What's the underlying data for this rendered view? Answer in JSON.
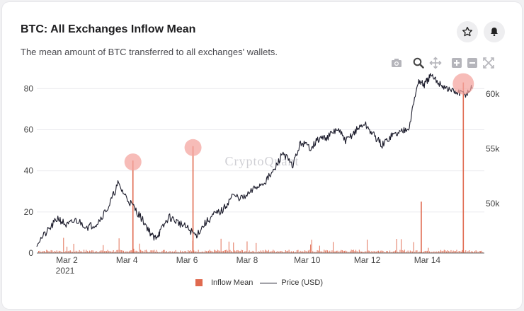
{
  "header": {
    "title": "BTC: All Exchanges Inflow Mean",
    "subtitle": "The mean amount of BTC transferred to all exchanges' wallets."
  },
  "actions": {
    "star_icon": "star-icon",
    "bell_icon": "bell-icon"
  },
  "modebar": [
    "camera-icon",
    "zoom-icon",
    "pan-icon",
    "zoom-in-icon",
    "zoom-out-icon",
    "autoscale-icon"
  ],
  "watermark": "CryptoQuant",
  "legend": {
    "inflow": "Inflow Mean",
    "price": "Price (USD)"
  },
  "colors": {
    "inflow": "#e06a4f",
    "price": "#1a1a2a",
    "highlight": "#f4a6a0"
  },
  "chart_data": {
    "type": "bar+line",
    "x_tick_labels": [
      "Mar 2",
      "Mar 4",
      "Mar 6",
      "Mar 8",
      "Mar 10",
      "Mar 12",
      "Mar 14"
    ],
    "x_year_label": "2021",
    "y_left_ticks": [
      "0",
      "20",
      "40",
      "60",
      "80"
    ],
    "y_right_ticks": [
      "50k",
      "55k",
      "60k"
    ],
    "y_left_range": [
      0,
      87
    ],
    "y_right_range": [
      45500,
      61800
    ],
    "x_range_days": [
      0.5,
      15.4
    ],
    "inflow_spikes": [
      {
        "day": 3.7,
        "value": 45
      },
      {
        "day": 5.7,
        "value": 52
      },
      {
        "day": 13.3,
        "value": 25
      },
      {
        "day": 14.7,
        "value": 83
      }
    ],
    "inflow_highlights": [
      {
        "day": 3.7,
        "value": 45
      },
      {
        "day": 5.7,
        "value": 52
      },
      {
        "day": 14.7,
        "value": 83
      }
    ],
    "price_series": {
      "day": [
        0.5,
        0.9,
        1.2,
        1.5,
        1.8,
        2.2,
        2.5,
        2.9,
        3.2,
        3.5,
        3.8,
        4.1,
        4.4,
        4.6,
        4.9,
        5.2,
        5.5,
        5.8,
        6.1,
        6.4,
        6.7,
        7.0,
        7.4,
        7.8,
        8.1,
        8.4,
        8.7,
        9.0,
        9.3,
        9.6,
        9.9,
        10.2,
        10.5,
        10.8,
        11.1,
        11.4,
        11.7,
        12.0,
        12.3,
        12.6,
        12.9,
        13.2,
        13.4,
        13.6,
        13.9,
        14.2,
        14.5,
        14.8,
        15.0
      ],
      "price_usd": [
        46400,
        47600,
        48700,
        48000,
        48500,
        47900,
        48200,
        49800,
        51800,
        50500,
        49400,
        48200,
        46800,
        47400,
        48800,
        48300,
        47800,
        47100,
        48200,
        49000,
        49400,
        50700,
        50500,
        51500,
        52000,
        53000,
        54700,
        53400,
        55600,
        55100,
        55900,
        56100,
        56800,
        55700,
        56600,
        57300,
        56300,
        55300,
        56200,
        56500,
        57100,
        61200,
        60800,
        61600,
        61000,
        60400,
        60100,
        60000,
        60600
      ]
    }
  }
}
